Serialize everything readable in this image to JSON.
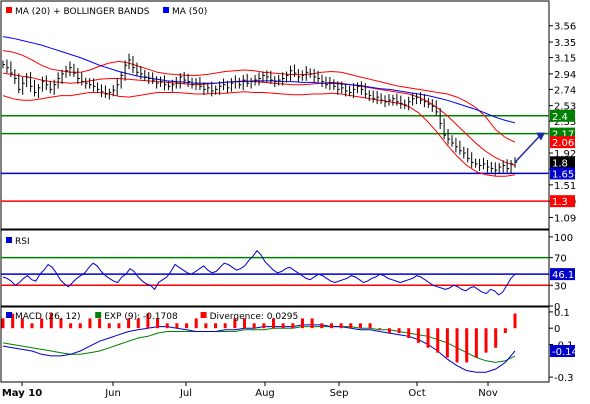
{
  "chart_data": [
    {
      "type": "line",
      "panel": "price",
      "indicators": [
        {
          "key": "ma20",
          "label": "MA (20) + BOLLINGER BANDS",
          "color": "#ff0000"
        },
        {
          "key": "ma50",
          "label": "MA (50)",
          "color": "#0000ff"
        }
      ],
      "ylim": [
        1.07,
        3.75
      ],
      "y_ticks": [
        "3.56",
        "3.35",
        "3.15",
        "2.94",
        "2.74",
        "2.53",
        "2.33",
        "1.92",
        "1.71",
        "1.51",
        "1.30",
        "1.09"
      ],
      "x_ticks": [
        "May 10",
        "Jun",
        "Jul",
        "Aug",
        "Sep",
        "Oct",
        "Nov"
      ],
      "grid": false,
      "levels": [
        {
          "value": 2.4,
          "label": "2.4",
          "color": "#008000"
        },
        {
          "value": 2.17,
          "label": "2.17",
          "color": "#008000"
        },
        {
          "value": 1.6573,
          "label": "1.6573",
          "color": "#0000cc"
        },
        {
          "value": 1.3,
          "label": "1.3",
          "color": "#ff0000"
        }
      ],
      "price_tags": [
        {
          "value": 2.06,
          "label": "2.06",
          "color": "#ff0000"
        },
        {
          "value": 1.8,
          "label": "1.8",
          "color": "#000000"
        }
      ],
      "close": [
        3.06,
        3.02,
        2.95,
        2.88,
        2.74,
        2.82,
        2.9,
        2.78,
        2.7,
        2.76,
        2.84,
        2.8,
        2.74,
        2.8,
        2.88,
        2.94,
        2.98,
        3.02,
        2.95,
        2.88,
        2.84,
        2.82,
        2.8,
        2.78,
        2.74,
        2.71,
        2.68,
        2.7,
        2.73,
        2.8,
        2.92,
        3.05,
        3.12,
        3.02,
        2.96,
        2.94,
        2.9,
        2.88,
        2.86,
        2.82,
        2.84,
        2.8,
        2.78,
        2.8,
        2.82,
        2.9,
        2.86,
        2.84,
        2.8,
        2.82,
        2.78,
        2.74,
        2.76,
        2.72,
        2.74,
        2.78,
        2.8,
        2.76,
        2.82,
        2.84,
        2.8,
        2.86,
        2.82,
        2.84,
        2.86,
        2.88,
        2.92,
        2.9,
        2.86,
        2.84,
        2.86,
        2.88,
        2.92,
        2.98,
        2.95,
        2.9,
        2.92,
        2.96,
        2.94,
        2.9,
        2.88,
        2.84,
        2.8,
        2.82,
        2.78,
        2.74,
        2.76,
        2.72,
        2.7,
        2.74,
        2.78,
        2.74,
        2.68,
        2.66,
        2.62,
        2.64,
        2.6,
        2.58,
        2.6,
        2.62,
        2.58,
        2.56,
        2.54,
        2.58,
        2.62,
        2.64,
        2.6,
        2.58,
        2.55,
        2.52,
        2.45,
        2.3,
        2.15,
        2.1,
        2.05,
        2.0,
        1.95,
        1.92,
        1.85,
        1.8,
        1.78,
        1.76,
        1.78,
        1.74,
        1.72,
        1.7,
        1.74,
        1.76,
        1.72,
        1.78,
        1.8
      ],
      "ma20_series": [
        2.95,
        2.93,
        2.91,
        2.89,
        2.86,
        2.84,
        2.83,
        2.82,
        2.83,
        2.85,
        2.87,
        2.88,
        2.88,
        2.87,
        2.86,
        2.85,
        2.84,
        2.83,
        2.82,
        2.81,
        2.8,
        2.81,
        2.82,
        2.83,
        2.84,
        2.85,
        2.84,
        2.83,
        2.82,
        2.81,
        2.8,
        2.8,
        2.81,
        2.82,
        2.83,
        2.82,
        2.8,
        2.78,
        2.76,
        2.74,
        2.72,
        2.7,
        2.68,
        2.64,
        2.58,
        2.5,
        2.4,
        2.28,
        2.16,
        2.04,
        1.94,
        1.86,
        1.8,
        1.76
      ],
      "bb_upper": [
        3.24,
        3.22,
        3.18,
        3.12,
        3.05,
        3.0,
        2.98,
        2.96,
        2.96,
        2.99,
        3.04,
        3.08,
        3.1,
        3.08,
        3.04,
        3.0,
        2.96,
        2.94,
        2.93,
        2.92,
        2.92,
        2.93,
        2.95,
        2.97,
        2.98,
        2.99,
        2.98,
        2.96,
        2.95,
        2.94,
        2.93,
        2.93,
        2.94,
        2.96,
        2.97,
        2.96,
        2.93,
        2.9,
        2.87,
        2.84,
        2.81,
        2.78,
        2.76,
        2.74,
        2.72,
        2.7,
        2.68,
        2.64,
        2.58,
        2.5,
        2.38,
        2.22,
        2.12,
        2.06
      ],
      "bb_lower": [
        2.66,
        2.62,
        2.6,
        2.6,
        2.62,
        2.64,
        2.66,
        2.66,
        2.68,
        2.7,
        2.7,
        2.68,
        2.65,
        2.64,
        2.66,
        2.68,
        2.7,
        2.7,
        2.7,
        2.69,
        2.68,
        2.68,
        2.69,
        2.69,
        2.7,
        2.71,
        2.7,
        2.7,
        2.69,
        2.68,
        2.67,
        2.67,
        2.68,
        2.68,
        2.69,
        2.68,
        2.66,
        2.64,
        2.62,
        2.6,
        2.58,
        2.56,
        2.52,
        2.44,
        2.32,
        2.18,
        2.02,
        1.88,
        1.76,
        1.68,
        1.64,
        1.62,
        1.62,
        1.64
      ],
      "ma50_series": [
        3.42,
        3.4,
        3.37,
        3.34,
        3.31,
        3.27,
        3.23,
        3.19,
        3.15,
        3.1,
        3.05,
        3.01,
        2.97,
        2.94,
        2.91,
        2.89,
        2.87,
        2.85,
        2.84,
        2.83,
        2.82,
        2.82,
        2.82,
        2.83,
        2.84,
        2.84,
        2.85,
        2.85,
        2.85,
        2.84,
        2.84,
        2.83,
        2.83,
        2.82,
        2.82,
        2.81,
        2.8,
        2.79,
        2.77,
        2.75,
        2.74,
        2.72,
        2.7,
        2.68,
        2.66,
        2.63,
        2.6,
        2.56,
        2.52,
        2.48,
        2.43,
        2.38,
        2.34,
        2.31
      ]
    },
    {
      "type": "line",
      "panel": "rsi",
      "title": "RSI",
      "ylim": [
        0,
        110
      ],
      "y_ticks": [
        "100",
        "70",
        "30",
        "0"
      ],
      "levels": [
        {
          "value": 70,
          "label": "70",
          "color": "#008000"
        },
        {
          "value": 30,
          "label": "30",
          "color": "#ff0000"
        }
      ],
      "current": {
        "value": 46.16,
        "label": "46.16"
      },
      "values": [
        42,
        40,
        36,
        30,
        34,
        40,
        44,
        38,
        36,
        46,
        52,
        60,
        56,
        48,
        38,
        32,
        28,
        34,
        40,
        44,
        48,
        56,
        62,
        58,
        50,
        44,
        40,
        36,
        34,
        42,
        46,
        54,
        50,
        42,
        36,
        32,
        30,
        24,
        34,
        38,
        42,
        50,
        60,
        56,
        52,
        48,
        46,
        50,
        54,
        58,
        52,
        48,
        50,
        56,
        62,
        60,
        56,
        52,
        54,
        58,
        66,
        72,
        80,
        74,
        64,
        58,
        52,
        48,
        50,
        54,
        56,
        52,
        48,
        44,
        40,
        38,
        42,
        46,
        44,
        40,
        36,
        34,
        36,
        38,
        40,
        44,
        42,
        38,
        34,
        36,
        40,
        42,
        46,
        44,
        40,
        38,
        36,
        34,
        36,
        38,
        40,
        44,
        42,
        38,
        34,
        30,
        28,
        26,
        24,
        26,
        30,
        28,
        24,
        22,
        26,
        28,
        24,
        20,
        18,
        24,
        22,
        16,
        20,
        30,
        40,
        46
      ]
    },
    {
      "type": "line",
      "panel": "macd",
      "indicators": [
        {
          "key": "macd",
          "label": "MACD (26, 12)",
          "color": "#0000cc"
        },
        {
          "key": "signal",
          "label": "EXP (9): -0.1708",
          "color": "#008000"
        },
        {
          "key": "divergence",
          "label": "Divergence: 0.0295",
          "color": "#ff0000"
        }
      ],
      "ylim": [
        -0.33,
        0.13
      ],
      "y_ticks": [
        "0.1",
        "0",
        "-0.1",
        "-0.3"
      ],
      "current": {
        "value": -0.14,
        "label": "-0.14"
      },
      "macd_series": [
        -0.11,
        -0.12,
        -0.13,
        -0.14,
        -0.16,
        -0.17,
        -0.17,
        -0.16,
        -0.14,
        -0.11,
        -0.08,
        -0.06,
        -0.04,
        -0.02,
        -0.01,
        0.0,
        0.01,
        0.01,
        0.0,
        -0.01,
        -0.02,
        -0.02,
        -0.02,
        -0.01,
        -0.01,
        0.0,
        0.0,
        0.01,
        0.01,
        0.01,
        0.01,
        0.02,
        0.02,
        0.02,
        0.01,
        0.01,
        0.0,
        -0.01,
        -0.01,
        -0.02,
        -0.03,
        -0.04,
        -0.05,
        -0.07,
        -0.1,
        -0.14,
        -0.19,
        -0.23,
        -0.26,
        -0.27,
        -0.27,
        -0.25,
        -0.21,
        -0.14
      ],
      "signal_series": [
        -0.09,
        -0.1,
        -0.11,
        -0.12,
        -0.13,
        -0.14,
        -0.15,
        -0.16,
        -0.16,
        -0.15,
        -0.14,
        -0.12,
        -0.1,
        -0.08,
        -0.06,
        -0.05,
        -0.03,
        -0.02,
        -0.02,
        -0.02,
        -0.02,
        -0.02,
        -0.02,
        -0.02,
        -0.02,
        -0.01,
        -0.01,
        -0.01,
        0.0,
        0.0,
        0.0,
        0.01,
        0.01,
        0.01,
        0.01,
        0.01,
        0.01,
        0.0,
        0.0,
        -0.01,
        -0.01,
        -0.02,
        -0.03,
        -0.04,
        -0.05,
        -0.07,
        -0.09,
        -0.12,
        -0.15,
        -0.18,
        -0.2,
        -0.21,
        -0.2,
        -0.17
      ],
      "divergence": [
        0.02,
        0.03,
        0.02,
        0.01,
        0.02,
        0.03,
        0.02,
        0.01,
        0.01,
        0.02,
        0.02,
        0.01,
        0.01,
        0.02,
        0.02,
        0.03,
        0.02,
        0.01,
        0.01,
        0.01,
        0.02,
        0.01,
        0.01,
        0.01,
        0.02,
        0.02,
        0.01,
        0.01,
        0.02,
        0.01,
        0.01,
        0.02,
        0.02,
        0.01,
        0.01,
        0.01,
        0.01,
        0.01,
        0.01,
        0.0,
        -0.01,
        -0.01,
        -0.02,
        -0.03,
        -0.04,
        -0.05,
        -0.06,
        -0.07,
        -0.07,
        -0.06,
        -0.05,
        -0.04,
        -0.01,
        0.03
      ]
    }
  ]
}
